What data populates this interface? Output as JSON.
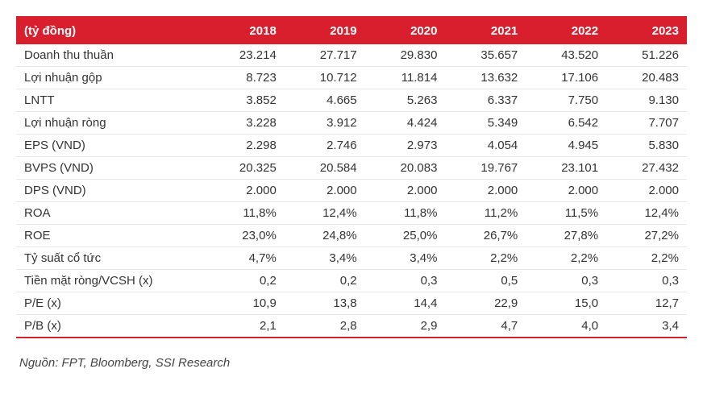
{
  "table": {
    "header_bg": "#d91f2d",
    "header_fg": "#ffffff",
    "row_border": "#e8e8e8",
    "bottom_border": "#d91f2d",
    "columns": [
      "(tỷ đồng)",
      "2018",
      "2019",
      "2020",
      "2021",
      "2022",
      "2023"
    ],
    "rows": [
      [
        "Doanh thu thuần",
        "23.214",
        "27.717",
        "29.830",
        "35.657",
        "43.520",
        "51.226"
      ],
      [
        "Lợi nhuận gộp",
        "8.723",
        "10.712",
        "11.814",
        "13.632",
        "17.106",
        "20.483"
      ],
      [
        "LNTT",
        "3.852",
        "4.665",
        "5.263",
        "6.337",
        "7.750",
        "9.130"
      ],
      [
        "Lợi nhuận ròng",
        "3.228",
        "3.912",
        "4.424",
        "5.349",
        "6.542",
        "7.707"
      ],
      [
        "EPS (VND)",
        "2.298",
        "2.746",
        "2.973",
        "4.054",
        "4.945",
        "5.830"
      ],
      [
        "BVPS (VND)",
        "20.325",
        "20.584",
        "20.083",
        "19.767",
        "23.101",
        "27.432"
      ],
      [
        "DPS (VND)",
        "2.000",
        "2.000",
        "2.000",
        "2.000",
        "2.000",
        "2.000"
      ],
      [
        "ROA",
        "11,8%",
        "12,4%",
        "11,8%",
        "11,2%",
        "11,5%",
        "12,4%"
      ],
      [
        "ROE",
        "23,0%",
        "24,8%",
        "25,0%",
        "26,7%",
        "27,8%",
        "27,2%"
      ],
      [
        "Tỷ suất cổ tức",
        "4,7%",
        "3,4%",
        "3,4%",
        "2,2%",
        "2,2%",
        "2,2%"
      ],
      [
        "Tiền mặt ròng/VCSH (x)",
        "0,2",
        "0,2",
        "0,3",
        "0,5",
        "0,3",
        "0,3"
      ],
      [
        "P/E (x)",
        "10,9",
        "13,8",
        "14,4",
        "22,9",
        "15,0",
        "12,7"
      ],
      [
        "P/B (x)",
        "2,1",
        "2,8",
        "2,9",
        "4,7",
        "4,0",
        "3,4"
      ]
    ]
  },
  "source_label": "Nguồn: FPT, Bloomberg, SSI Research"
}
